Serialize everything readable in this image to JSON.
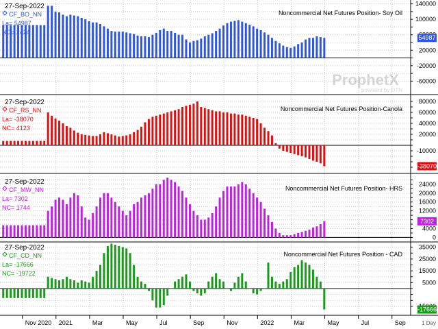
{
  "chart_data": [
    {
      "type": "bar",
      "date": "27-Sep-2022",
      "symbol": "CF_BO_NN",
      "la": "La= 54987",
      "nc": "NC= 2424",
      "title": "Noncommercial Net Futures Position- Soy Oil",
      "color": "#2f56e0",
      "last_label": "54987",
      "ylim": [
        -70000,
        150000
      ],
      "yticks": [
        -60000,
        -40000,
        -20000,
        0,
        20000,
        40000,
        60000,
        80000,
        100000,
        120000,
        140000
      ],
      "ytick_labels": [
        "-60000",
        "",
        "-20000",
        "",
        "20000",
        "",
        "60000",
        "",
        "100000",
        "",
        "140000"
      ],
      "values": [
        85000,
        85000,
        85000,
        85000,
        85000,
        85000,
        85000,
        85000,
        85000,
        85000,
        85000,
        85000,
        135000,
        135000,
        120000,
        118000,
        112000,
        108000,
        112000,
        110000,
        108000,
        104000,
        100000,
        95000,
        92000,
        92000,
        88000,
        82000,
        76000,
        70000,
        68000,
        68000,
        68000,
        66000,
        64000,
        62000,
        58000,
        56000,
        56000,
        54000,
        60000,
        65000,
        72000,
        76000,
        70000,
        70000,
        65000,
        60000,
        60000,
        48000,
        40000,
        44000,
        46000,
        50000,
        56000,
        60000,
        64000,
        70000,
        76000,
        84000,
        90000,
        94000,
        96000,
        98000,
        94000,
        90000,
        86000,
        82000,
        76000,
        72000,
        66000,
        60000,
        52000,
        44000,
        38000,
        32000,
        28000,
        26000,
        30000,
        36000,
        40000,
        48000,
        52000,
        52000,
        56000,
        54000,
        52000
      ]
    },
    {
      "type": "bar",
      "date": "27-Sep-2022",
      "symbol": "CF_RS_NN",
      "la": "La= -38070",
      "nc": "NC= 4123",
      "title": "Noncommercial Net Futures Position-Canola",
      "color": "#e01010",
      "last_label": "-38070",
      "ylim": [
        -45000,
        90000
      ],
      "yticks": [
        -40000,
        -30000,
        -20000,
        -10000,
        0,
        10000,
        20000,
        30000,
        40000,
        50000,
        60000,
        70000,
        80000
      ],
      "ytick_labels": [
        "",
        "",
        "",
        "-10000",
        "",
        "",
        "20000",
        "",
        "40000",
        "",
        "60000",
        "",
        "80000"
      ],
      "values": [
        8000,
        8000,
        8000,
        8000,
        8000,
        8000,
        8000,
        8000,
        8000,
        8000,
        8000,
        8000,
        60000,
        54000,
        49000,
        45000,
        40000,
        35000,
        32000,
        27000,
        23000,
        20000,
        19000,
        18000,
        17000,
        17000,
        20000,
        24000,
        22000,
        20000,
        18000,
        16000,
        17000,
        18000,
        20000,
        24000,
        28000,
        34000,
        42000,
        48000,
        52000,
        54000,
        56000,
        58000,
        60000,
        62000,
        64000,
        66000,
        70000,
        72000,
        74000,
        76000,
        80000,
        70000,
        68000,
        66000,
        64000,
        62000,
        62000,
        60000,
        60000,
        58000,
        58000,
        56000,
        56000,
        54000,
        52000,
        50000,
        48000,
        40000,
        32000,
        26000,
        18000,
        4000,
        -6000,
        -10000,
        -12000,
        -14000,
        -16000,
        -18000,
        -20000,
        -22000,
        -25000,
        -28000,
        -30000,
        -33000,
        -38070
      ]
    },
    {
      "type": "bar",
      "date": "27-Sep-2022",
      "symbol": "CF_MW_NN",
      "la": "La= 7302",
      "nc": "NC= 1744",
      "title": "Noncommercial Net Futures Position- HRS",
      "color": "#c020e0",
      "last_label": "7302",
      "ylim": [
        -500,
        28000
      ],
      "yticks": [
        0,
        2000,
        4000,
        6000,
        8000,
        10000,
        12000,
        14000,
        16000,
        18000,
        20000,
        22000,
        24000,
        26000
      ],
      "ytick_labels": [
        "0",
        "",
        "4000",
        "",
        "8000",
        "",
        "12000",
        "",
        "16000",
        "",
        "20000",
        "",
        "24000",
        ""
      ],
      "values": [
        5500,
        5500,
        5500,
        5500,
        5500,
        5500,
        5500,
        5500,
        5500,
        5500,
        5500,
        5500,
        12000,
        14000,
        17000,
        18000,
        17000,
        15000,
        18000,
        20000,
        19000,
        14000,
        9000,
        8000,
        11000,
        14000,
        18000,
        20000,
        20000,
        18000,
        16000,
        14000,
        12000,
        10000,
        12000,
        15000,
        16000,
        18000,
        19000,
        20000,
        22000,
        24000,
        24000,
        26000,
        27000,
        26000,
        25000,
        23000,
        21000,
        18000,
        15000,
        12000,
        10000,
        8000,
        8000,
        9000,
        11000,
        14000,
        18000,
        21000,
        23000,
        23000,
        23000,
        24000,
        25000,
        24000,
        22000,
        20000,
        18000,
        16000,
        13000,
        10000,
        7000,
        4000,
        2000,
        1000,
        1000,
        1000,
        1500,
        2000,
        2500,
        3000,
        3500,
        4500,
        5000,
        6000,
        7302
      ]
    },
    {
      "type": "bar",
      "date": "27-Sep-2022",
      "symbol": "CF_CD_NN",
      "la": "La= -17666",
      "nc": "NC= -19722",
      "title": "Noncommercial Net Futures Position - CAD",
      "color": "#1a9a1a",
      "last_label": "-17666",
      "ylim": [
        -22000,
        40000
      ],
      "yticks": [
        -15000,
        -10000,
        -5000,
        0,
        5000,
        10000,
        15000,
        20000,
        25000,
        30000,
        35000
      ],
      "ytick_labels": [
        "-15000",
        "",
        "",
        "",
        "5000",
        "",
        "15000",
        "",
        "25000",
        "",
        "35000"
      ],
      "values": [
        -8000,
        -8000,
        -8000,
        -8000,
        -8000,
        -8000,
        -8000,
        -8000,
        -8000,
        -8000,
        -8000,
        -8000,
        10000,
        9000,
        8000,
        7000,
        8000,
        10000,
        8000,
        7000,
        5000,
        7000,
        6000,
        5000,
        10000,
        15000,
        20000,
        30000,
        36000,
        38000,
        37000,
        36000,
        35000,
        34000,
        30000,
        20000,
        10000,
        6000,
        4000,
        -2000,
        -10000,
        -16000,
        -16000,
        -14000,
        -6000,
        0,
        6000,
        8000,
        10000,
        12000,
        6000,
        -2000,
        -4000,
        -6000,
        -4000,
        6000,
        10000,
        13000,
        8000,
        6000,
        0,
        -2000,
        5000,
        10000,
        13000,
        6000,
        0,
        -4000,
        -5000,
        -2000,
        0,
        22000,
        10000,
        6000,
        4000,
        6000,
        8000,
        14000,
        18000,
        20000,
        24000,
        22000,
        20000,
        16000,
        10000,
        6000,
        -17666
      ]
    }
  ],
  "x_axis": {
    "labels": [
      "Nov 2020",
      "2021",
      "Mar",
      "May",
      "Jul",
      "Sep",
      "Nov",
      "2022",
      "Mar",
      "May",
      "Jul",
      "Sep"
    ],
    "label_bars": [
      6,
      15,
      24,
      33,
      42,
      51,
      60,
      69,
      78,
      87,
      96,
      105
    ],
    "period": "1 Day"
  },
  "watermark": {
    "main": "ProphetX",
    "sub": "powered by DTN"
  },
  "colors": {
    "background": "#ffffff",
    "grid": "#c8c8c8",
    "axis_text": "#000000"
  }
}
